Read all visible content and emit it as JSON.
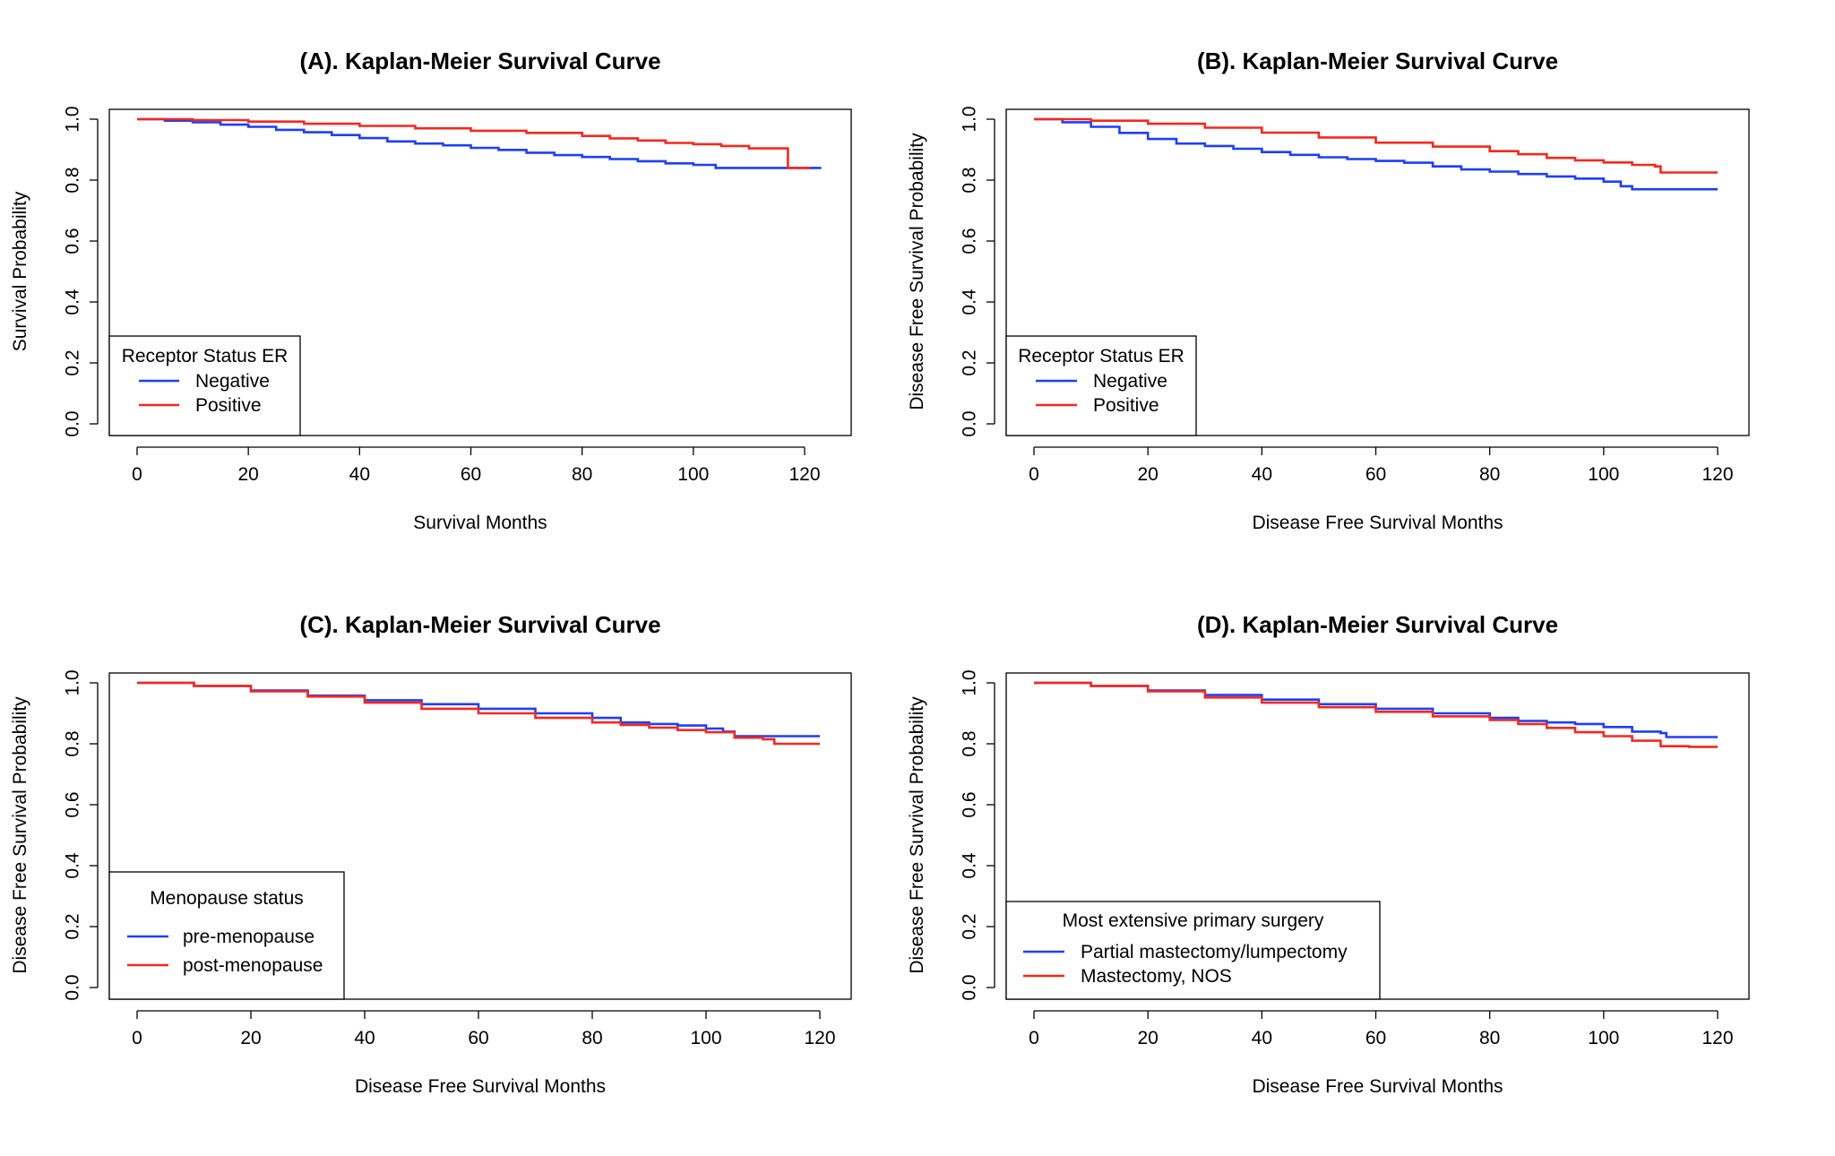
{
  "colors": {
    "blue": "#1f3ff5",
    "red": "#f5281e",
    "axis": "#000000"
  },
  "chart_data": [
    {
      "type": "line",
      "title": "(A). Kaplan-Meier Survival Curve",
      "xlabel": "Survival Months",
      "ylabel": "Survival Probability",
      "xlim": [
        0,
        125
      ],
      "ylim": [
        0,
        1
      ],
      "xticks": [
        "0",
        "20",
        "40",
        "60",
        "80",
        "100",
        "120"
      ],
      "yticks": [
        "0.0",
        "0.2",
        "0.4",
        "0.6",
        "0.8",
        "1.0"
      ],
      "legend": {
        "title": "Receptor Status ER",
        "position": "bottom-left"
      },
      "series": [
        {
          "name": "Negative",
          "color": "#1f3ff5",
          "x": [
            0,
            5,
            10,
            15,
            20,
            25,
            30,
            35,
            40,
            45,
            50,
            55,
            60,
            65,
            70,
            75,
            80,
            85,
            90,
            95,
            100,
            104,
            110,
            115,
            120,
            123
          ],
          "y": [
            1.0,
            0.995,
            0.99,
            0.982,
            0.975,
            0.965,
            0.957,
            0.948,
            0.938,
            0.927,
            0.92,
            0.914,
            0.906,
            0.899,
            0.89,
            0.882,
            0.876,
            0.869,
            0.862,
            0.855,
            0.85,
            0.84,
            0.84,
            0.84,
            0.84,
            0.84
          ]
        },
        {
          "name": "Positive",
          "color": "#f5281e",
          "x": [
            0,
            10,
            20,
            30,
            40,
            50,
            60,
            70,
            80,
            85,
            90,
            95,
            100,
            105,
            110,
            116.9,
            117,
            120,
            121
          ],
          "y": [
            1.0,
            0.997,
            0.992,
            0.985,
            0.978,
            0.97,
            0.962,
            0.955,
            0.945,
            0.937,
            0.93,
            0.922,
            0.918,
            0.912,
            0.904,
            0.904,
            0.84,
            0.84,
            0.84
          ]
        }
      ]
    },
    {
      "type": "line",
      "title": "(B). Kaplan-Meier Survival Curve",
      "xlabel": "Disease Free Survival Months",
      "ylabel": "Disease Free Survival Probability",
      "xlim": [
        0,
        125
      ],
      "ylim": [
        0,
        1
      ],
      "xticks": [
        "0",
        "20",
        "40",
        "60",
        "80",
        "100",
        "120"
      ],
      "yticks": [
        "0.0",
        "0.2",
        "0.4",
        "0.6",
        "0.8",
        "1.0"
      ],
      "legend": {
        "title": "Receptor Status ER",
        "position": "bottom-left"
      },
      "series": [
        {
          "name": "Negative",
          "color": "#1f3ff5",
          "x": [
            0,
            5,
            10,
            15,
            20,
            25,
            30,
            35,
            40,
            45,
            50,
            55,
            60,
            65,
            70,
            75,
            80,
            85,
            90,
            95,
            100,
            103,
            105,
            110,
            115,
            120
          ],
          "y": [
            1.0,
            0.99,
            0.975,
            0.955,
            0.935,
            0.92,
            0.912,
            0.903,
            0.892,
            0.883,
            0.875,
            0.869,
            0.863,
            0.857,
            0.845,
            0.835,
            0.828,
            0.82,
            0.812,
            0.805,
            0.795,
            0.78,
            0.77,
            0.77,
            0.77,
            0.77
          ]
        },
        {
          "name": "Positive",
          "color": "#f5281e",
          "x": [
            0,
            10,
            20,
            30,
            40,
            50,
            60,
            70,
            80,
            85,
            90,
            95,
            100,
            105,
            109,
            110,
            115,
            120
          ],
          "y": [
            1.0,
            0.995,
            0.985,
            0.972,
            0.956,
            0.94,
            0.923,
            0.91,
            0.895,
            0.885,
            0.873,
            0.865,
            0.858,
            0.85,
            0.845,
            0.825,
            0.825,
            0.825
          ]
        }
      ]
    },
    {
      "type": "line",
      "title": "(C). Kaplan-Meier Survival Curve",
      "xlabel": "Disease Free Survival Months",
      "ylabel": "Disease Free Survival Probability",
      "xlim": [
        0,
        125
      ],
      "ylim": [
        0,
        1
      ],
      "xticks": [
        "0",
        "20",
        "40",
        "60",
        "80",
        "100",
        "120"
      ],
      "yticks": [
        "0.0",
        "0.2",
        "0.4",
        "0.6",
        "0.8",
        "1.0"
      ],
      "legend": {
        "title": "Menopause status",
        "position": "bottom-left"
      },
      "series": [
        {
          "name": "pre-menopause",
          "color": "#1f3ff5",
          "x": [
            0,
            10,
            20,
            30,
            40,
            50,
            60,
            70,
            80,
            85,
            90,
            95,
            100,
            103,
            105,
            110,
            115,
            120
          ],
          "y": [
            1.0,
            0.99,
            0.975,
            0.958,
            0.943,
            0.93,
            0.915,
            0.9,
            0.885,
            0.87,
            0.865,
            0.86,
            0.85,
            0.84,
            0.825,
            0.825,
            0.825,
            0.825
          ]
        },
        {
          "name": "post-menopause",
          "color": "#f5281e",
          "x": [
            0,
            10,
            20,
            30,
            40,
            50,
            60,
            70,
            80,
            85,
            90,
            95,
            100,
            105,
            110,
            112,
            115,
            120
          ],
          "y": [
            1.0,
            0.99,
            0.972,
            0.955,
            0.935,
            0.915,
            0.9,
            0.885,
            0.87,
            0.862,
            0.853,
            0.845,
            0.838,
            0.82,
            0.815,
            0.8,
            0.8,
            0.8
          ]
        }
      ]
    },
    {
      "type": "line",
      "title": "(D). Kaplan-Meier Survival Curve",
      "xlabel": "Disease Free Survival Months",
      "ylabel": "Disease Free Survival Probability",
      "xlim": [
        0,
        125
      ],
      "ylim": [
        0,
        1
      ],
      "xticks": [
        "0",
        "20",
        "40",
        "60",
        "80",
        "100",
        "120"
      ],
      "yticks": [
        "0.0",
        "0.2",
        "0.4",
        "0.6",
        "0.8",
        "1.0"
      ],
      "legend": {
        "title": "Most extensive primary surgery",
        "position": "bottom-left"
      },
      "series": [
        {
          "name": "Partial mastectomy/lumpectomy",
          "color": "#1f3ff5",
          "x": [
            0,
            10,
            20,
            30,
            40,
            50,
            60,
            70,
            80,
            85,
            90,
            95,
            100,
            105,
            110,
            111,
            115,
            120
          ],
          "y": [
            1.0,
            0.99,
            0.975,
            0.96,
            0.945,
            0.93,
            0.915,
            0.9,
            0.885,
            0.875,
            0.87,
            0.865,
            0.855,
            0.84,
            0.835,
            0.822,
            0.822,
            0.822
          ]
        },
        {
          "name": "Mastectomy, NOS",
          "color": "#f5281e",
          "x": [
            0,
            10,
            20,
            30,
            40,
            50,
            60,
            70,
            80,
            85,
            90,
            95,
            100,
            105,
            110,
            115,
            120
          ],
          "y": [
            1.0,
            0.99,
            0.972,
            0.952,
            0.935,
            0.92,
            0.905,
            0.89,
            0.878,
            0.865,
            0.852,
            0.838,
            0.825,
            0.81,
            0.792,
            0.79,
            0.79
          ]
        }
      ]
    }
  ]
}
